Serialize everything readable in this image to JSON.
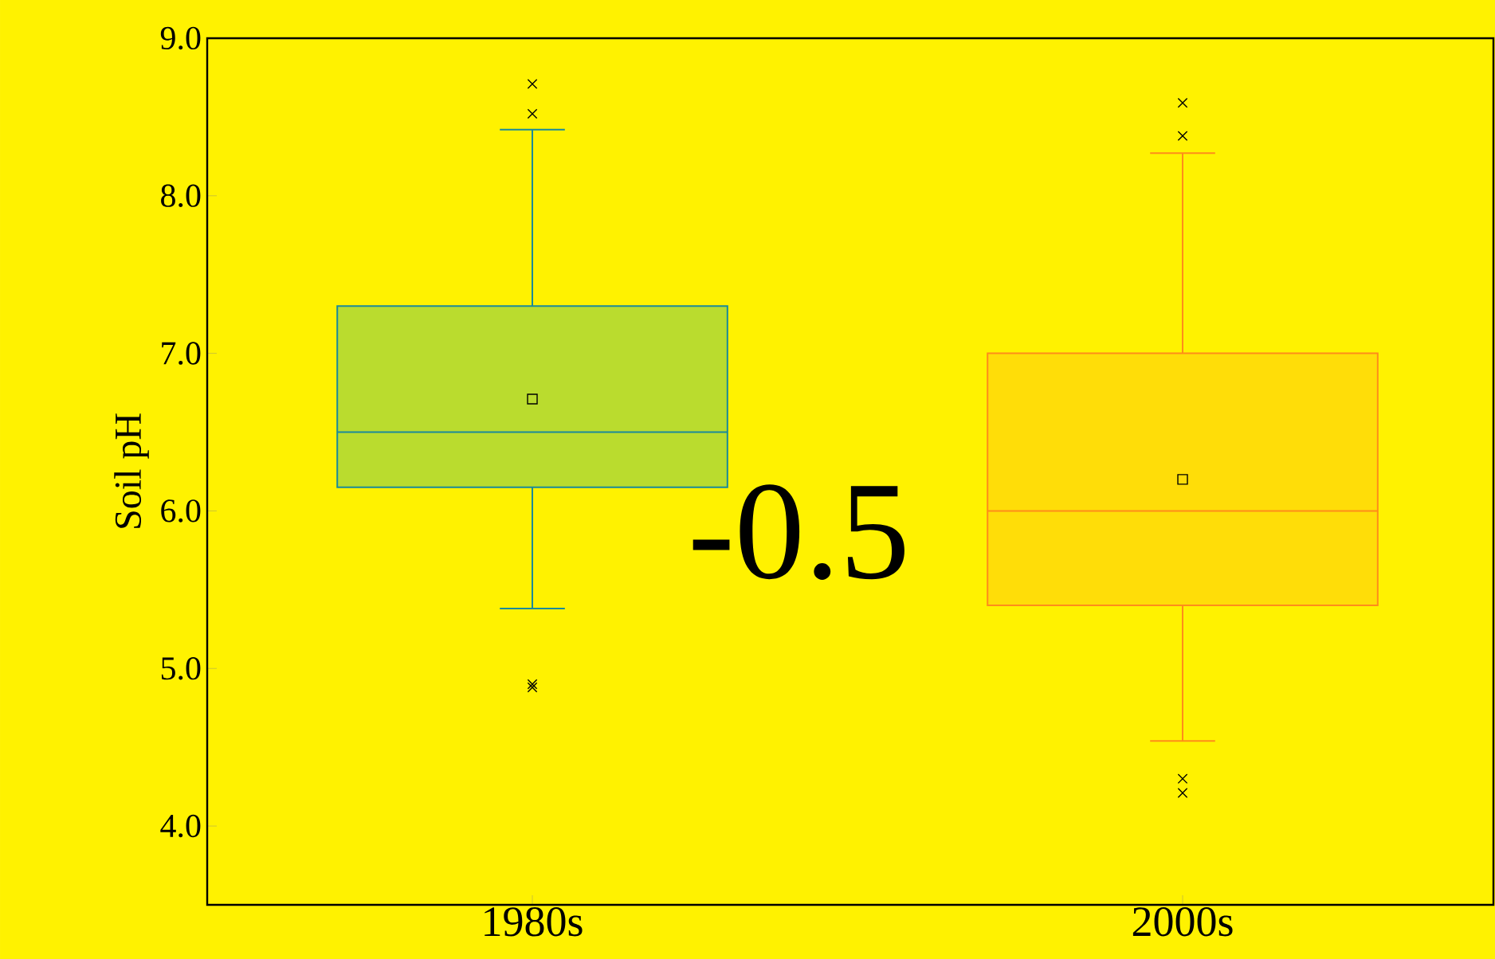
{
  "chart_data": {
    "type": "box",
    "ylabel": "Soil pH",
    "categories": [
      "1980s",
      "2000s"
    ],
    "ylim": [
      3.5,
      9
    ],
    "yticks": [
      {
        "value": 4,
        "label": "4.0"
      },
      {
        "value": 5,
        "label": "5.0"
      },
      {
        "value": 6,
        "label": "6.0"
      },
      {
        "value": 7,
        "label": "7.0"
      },
      {
        "value": 8,
        "label": "8.0"
      },
      {
        "value": 9,
        "label": "9.0"
      }
    ],
    "colors": [
      "#1a8a9a",
      "#ff8c1a"
    ],
    "boxes": [
      {
        "low": 5.38,
        "q1": 6.15,
        "median": 6.5,
        "q3": 7.3,
        "high": 8.42,
        "mean": 6.71,
        "outliers": [
          8.52,
          8.71,
          4.9,
          4.88
        ]
      },
      {
        "low": 4.54,
        "q1": 5.4,
        "median": 6.0,
        "q3": 7.0,
        "high": 8.27,
        "mean": 6.2,
        "outliers": [
          8.38,
          8.59,
          4.3,
          4.21
        ]
      }
    ],
    "annotations": [
      "-0.5"
    ]
  }
}
